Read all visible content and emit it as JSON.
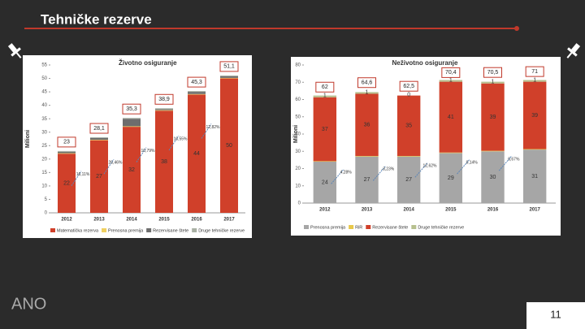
{
  "slide": {
    "title": "Tehničke rezerve",
    "page_number": "11",
    "logo": "ANO"
  },
  "chart_data": [
    {
      "type": "bar",
      "stacked": true,
      "title": "Životno osiguranje",
      "y_label": "Milioni",
      "categories": [
        "2012",
        "2013",
        "2014",
        "2015",
        "2016",
        "2017"
      ],
      "series": [
        {
          "name": "Matematička rezerva",
          "color": "#d0402a",
          "show_labels": true,
          "values": [
            22,
            27,
            32,
            38,
            44,
            50
          ]
        },
        {
          "name": "Prenosna premija",
          "color": "#f0d060",
          "show_labels": false,
          "values": [
            0.2,
            0.2,
            0.2,
            0.2,
            0.2,
            0.2
          ]
        },
        {
          "name": "Rezervisane štete",
          "color": "#6d6d6d",
          "show_labels": false,
          "values": [
            0.5,
            0.6,
            2.8,
            0.4,
            0.8,
            0.6
          ]
        },
        {
          "name": "Druge tehničke rezerve",
          "color": "#a9b0a4",
          "show_labels": false,
          "values": [
            0.3,
            0.3,
            0.3,
            0.3,
            0.3,
            0.3
          ]
        }
      ],
      "totals": [
        23,
        28.1,
        35.3,
        38.9,
        45.3,
        51.1
      ],
      "totals_labels": [
        "23",
        "28,1",
        "35,3",
        "38,9",
        "45,3",
        "51,1"
      ],
      "growth_labels": [
        "16,11%",
        "26,46%",
        "10,79%",
        "16,55%",
        "12,82%"
      ],
      "ylim": [
        0,
        55
      ],
      "yticks": [
        0,
        5,
        10,
        15,
        20,
        25,
        30,
        35,
        40,
        45,
        50,
        55
      ]
    },
    {
      "type": "bar",
      "stacked": true,
      "title": "Neživotno osiguranje",
      "y_label": "Milioni",
      "categories": [
        "2012",
        "2013",
        "2014",
        "2015",
        "2016",
        "2017"
      ],
      "series": [
        {
          "name": "Prenosna premija",
          "color": "#a6a6a6",
          "show_labels": true,
          "values": [
            24,
            27,
            27,
            29,
            30,
            31
          ]
        },
        {
          "name": "RiR",
          "color": "#e8c84a",
          "show_labels": false,
          "values": [
            0.3,
            0.3,
            0.3,
            0.3,
            0.3,
            0.3
          ]
        },
        {
          "name": "Rezervisane štete",
          "color": "#d0402a",
          "show_labels": true,
          "values": [
            37,
            36,
            35,
            41,
            39,
            39
          ]
        },
        {
          "name": "Druge tehničke rezerve",
          "color": "#b7c08f",
          "show_labels": true,
          "values": [
            1,
            1,
            0,
            1,
            1,
            1
          ]
        }
      ],
      "totals": [
        62,
        64.6,
        62.5,
        70.4,
        70.5,
        71
      ],
      "totals_labels": [
        "62",
        "64,6",
        "62,5",
        "70,4",
        "70,5",
        "71"
      ],
      "growth_labels": [
        "4,28%",
        "-3,23%",
        "12,62%",
        "0,14%",
        "0,67%"
      ],
      "ylim": [
        0,
        80
      ],
      "yticks": [
        0,
        10,
        20,
        30,
        40,
        50,
        60,
        70,
        80
      ]
    }
  ]
}
